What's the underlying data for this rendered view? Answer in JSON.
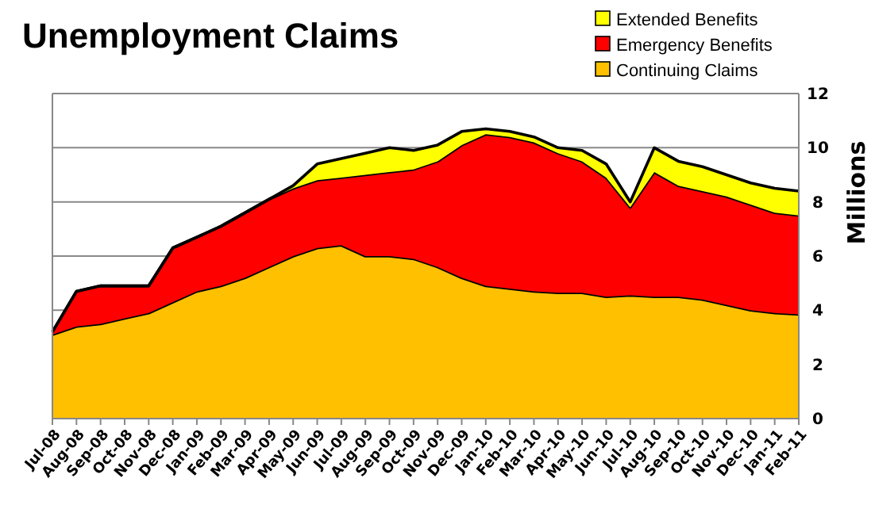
{
  "chart_data": {
    "type": "area",
    "stacked": true,
    "title": "Unemployment Claims",
    "ylabel": "Millions",
    "categories": [
      "Jul-08",
      "Aug-08",
      "Sep-08",
      "Oct-08",
      "Nov-08",
      "Dec-08",
      "Jan-09",
      "Feb-09",
      "Mar-09",
      "Apr-09",
      "May-09",
      "Jun-09",
      "Jul-09",
      "Aug-09",
      "Sep-09",
      "Oct-09",
      "Nov-09",
      "Dec-09",
      "Jan-10",
      "Feb-10",
      "Mar-10",
      "Apr-10",
      "May-10",
      "Jun-10",
      "Jul-10",
      "Aug-10",
      "Sep-10",
      "Oct-10",
      "Nov-10",
      "Dec-10",
      "Jan-11",
      "Feb-11"
    ],
    "series": [
      {
        "name": "Continuing Claims",
        "color": "#ffc000",
        "values": [
          3.1,
          3.4,
          3.5,
          3.7,
          3.9,
          4.3,
          4.7,
          4.9,
          5.2,
          5.6,
          6.0,
          6.3,
          6.4,
          6.0,
          6.0,
          5.9,
          5.6,
          5.2,
          4.9,
          4.8,
          4.7,
          4.65,
          4.65,
          4.5,
          4.55,
          4.5,
          4.5,
          4.4,
          4.2,
          4.0,
          3.9,
          3.85
        ]
      },
      {
        "name": "Emergency Benefits",
        "color": "#ff0000",
        "values": [
          0.1,
          1.3,
          1.4,
          1.2,
          1.0,
          2.0,
          2.0,
          2.2,
          2.4,
          2.5,
          2.5,
          2.5,
          2.5,
          3.0,
          3.1,
          3.3,
          3.9,
          4.9,
          5.6,
          5.6,
          5.5,
          5.15,
          4.85,
          4.4,
          3.25,
          4.6,
          4.1,
          4.0,
          4.0,
          3.9,
          3.7,
          3.65
        ]
      },
      {
        "name": "Extended Benefits",
        "color": "#ffff00",
        "values": [
          0,
          0,
          0,
          0,
          0,
          0,
          0,
          0,
          0,
          0,
          0.1,
          0.6,
          0.7,
          0.8,
          0.9,
          0.7,
          0.6,
          0.5,
          0.2,
          0.2,
          0.2,
          0.2,
          0.4,
          0.5,
          0.2,
          0.9,
          0.9,
          0.9,
          0.8,
          0.8,
          0.9,
          0.9
        ]
      }
    ],
    "ylim": [
      0,
      12
    ],
    "yticks": [
      0,
      2,
      4,
      6,
      8,
      10,
      12
    ],
    "grid": "y",
    "legend": "top right"
  }
}
